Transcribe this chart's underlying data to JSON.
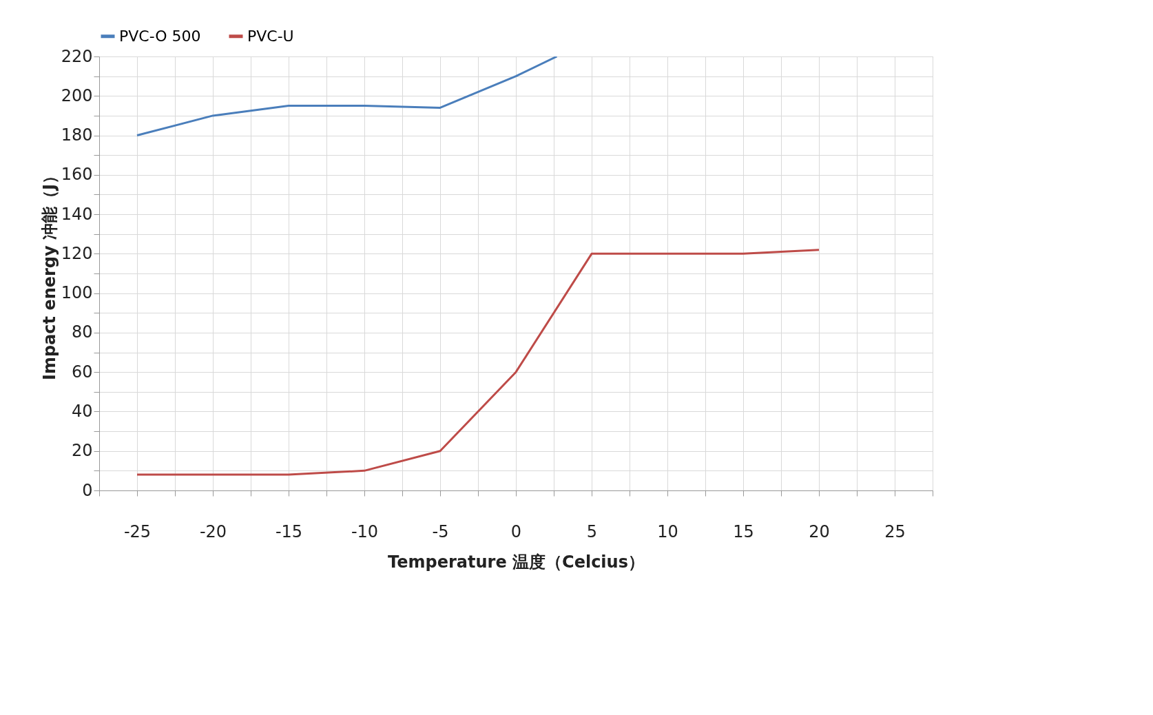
{
  "chart_data": {
    "type": "line",
    "xlabel": "Temperature 温度（Celcius）",
    "ylabel": "Impact energy 冲能（J）",
    "series": [
      {
        "name": "PVC-O 500",
        "color": "#4a7ebb",
        "x": [
          -25,
          -20,
          -15,
          -10,
          -5,
          0,
          2.7
        ],
        "values": [
          180,
          190,
          195,
          195,
          194,
          210,
          220
        ]
      },
      {
        "name": "PVC-U",
        "color": "#be4b48",
        "x": [
          -25,
          -20,
          -15,
          -10,
          -5,
          0,
          5,
          10,
          15,
          20
        ],
        "values": [
          8,
          8,
          8,
          10,
          20,
          60,
          120,
          120,
          120,
          122
        ]
      }
    ],
    "xlim": [
      -27.5,
      27.5
    ],
    "xticks": [
      {
        "value": -27.5,
        "label": null
      },
      -25,
      {
        "value": -22.5,
        "label": null
      },
      -20,
      {
        "value": -17.5,
        "label": null
      },
      -15,
      {
        "value": -12.5,
        "label": null
      },
      -10,
      {
        "value": -7.5,
        "label": null
      },
      -5,
      {
        "value": -2.5,
        "label": null
      },
      0,
      {
        "value": 2.5,
        "label": null
      },
      5,
      {
        "value": 7.5,
        "label": null
      },
      10,
      {
        "value": 12.5,
        "label": null
      },
      15,
      {
        "value": 17.5,
        "label": null
      },
      20,
      {
        "value": 22.5,
        "label": null
      },
      25,
      {
        "value": 27.5,
        "label": null
      }
    ],
    "ylim": [
      0,
      220
    ],
    "yticks": [
      0,
      {
        "value": 10,
        "label": null
      },
      20,
      {
        "value": 30,
        "label": null
      },
      40,
      {
        "value": 50,
        "label": null
      },
      60,
      {
        "value": 70,
        "label": null
      },
      80,
      {
        "value": 90,
        "label": null
      },
      100,
      {
        "value": 110,
        "label": null
      },
      120,
      {
        "value": 130,
        "label": null
      },
      140,
      {
        "value": 150,
        "label": null
      },
      160,
      {
        "value": 170,
        "label": null
      },
      180,
      {
        "value": 190,
        "label": null
      },
      200,
      {
        "value": 210,
        "label": null
      },
      220
    ],
    "grid": true,
    "legend": "top",
    "marker": "none",
    "line_style": "solid"
  }
}
